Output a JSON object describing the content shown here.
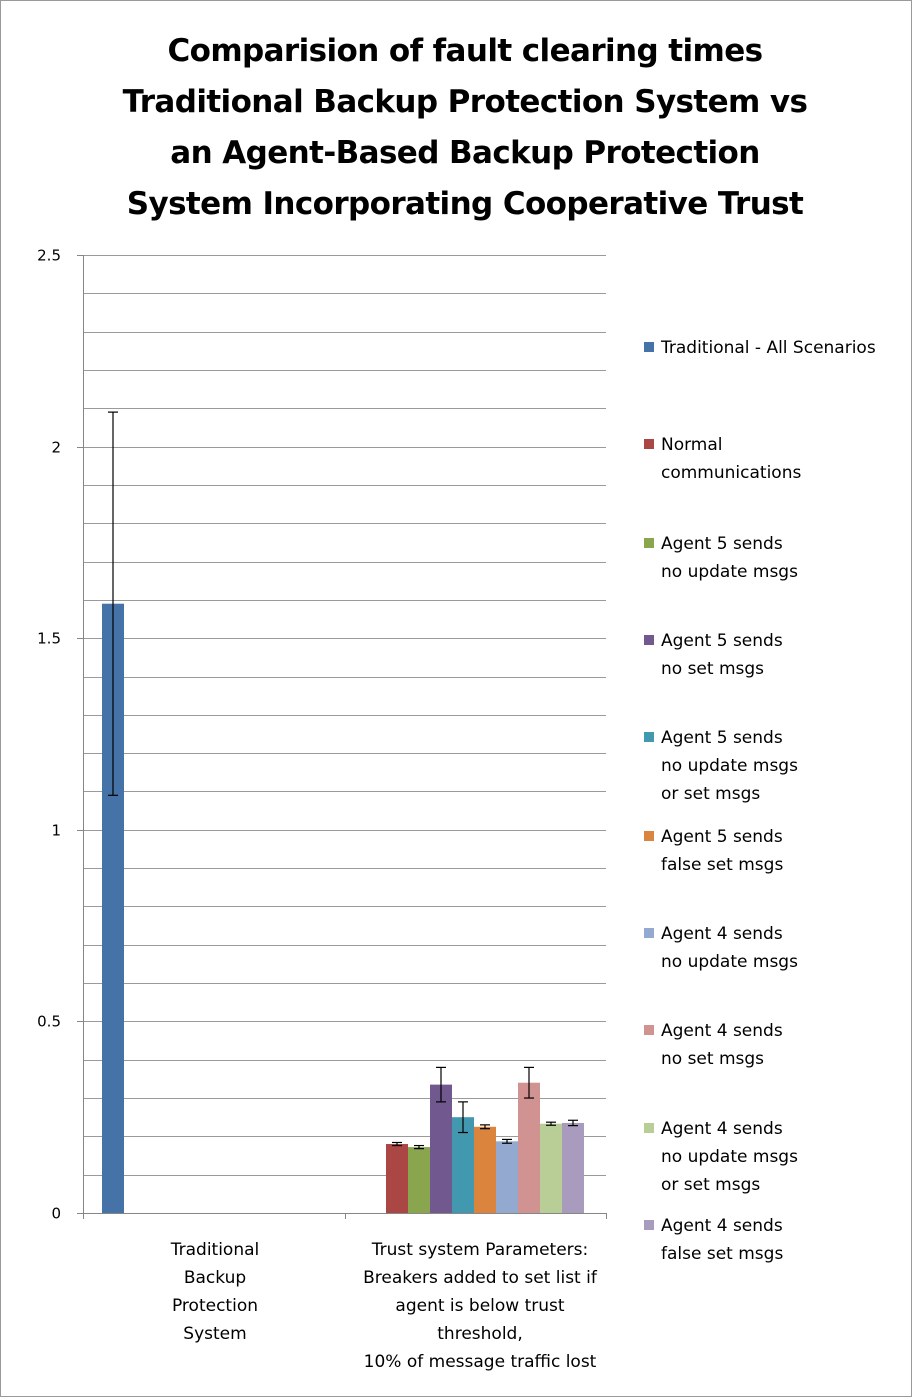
{
  "chart_data": {
    "type": "bar",
    "title_lines": [
      "Comparision of fault clearing times",
      "Traditional Backup Protection System vs",
      "an Agent-Based Backup Protection",
      "System Incorporating Cooperative Trust"
    ],
    "xlabel": "",
    "ylabel": "",
    "ylim": [
      0,
      2.5
    ],
    "y_ticks": [
      "0",
      "0.5",
      "1",
      "1.5",
      "2",
      "2.5"
    ],
    "y_tick_values": [
      0,
      0.5,
      1,
      1.5,
      2,
      2.5
    ],
    "minor_gridline_step": 0.1,
    "grid": true,
    "legend_position": "right",
    "categories": [
      {
        "lines": [
          "Traditional",
          "Backup",
          "Protection",
          "System"
        ]
      },
      {
        "lines": [
          "Trust system Parameters:",
          "Breakers added to set list if",
          "agent is below trust",
          "threshold,",
          "10% of message traffic lost"
        ]
      }
    ],
    "series": [
      {
        "name_lines": [
          "Traditional - All Scenarios"
        ],
        "color": "#4572a7",
        "category": 0,
        "value": 1.59,
        "err_low": 1.09,
        "err_high": 2.09
      },
      {
        "name_lines": [
          "Normal",
          "communications"
        ],
        "color": "#aa4643",
        "category": 1,
        "value": 0.18,
        "err_low": 0.176,
        "err_high": 0.184
      },
      {
        "name_lines": [
          "Agent 5 sends",
          "no update  msgs"
        ],
        "color": "#89a54e",
        "category": 1,
        "value": 0.172,
        "err_low": 0.168,
        "err_high": 0.176
      },
      {
        "name_lines": [
          "Agent 5 sends",
          "no set msgs"
        ],
        "color": "#71588f",
        "category": 1,
        "value": 0.335,
        "err_low": 0.29,
        "err_high": 0.38
      },
      {
        "name_lines": [
          "Agent 5 sends",
          "no update  msgs",
          "or set msgs"
        ],
        "color": "#4198af",
        "category": 1,
        "value": 0.25,
        "err_low": 0.21,
        "err_high": 0.29
      },
      {
        "name_lines": [
          "Agent 5 sends",
          "false set msgs"
        ],
        "color": "#db843d",
        "category": 1,
        "value": 0.225,
        "err_low": 0.22,
        "err_high": 0.23
      },
      {
        "name_lines": [
          "Agent 4 sends",
          "no update  msgs"
        ],
        "color": "#93a9cf",
        "category": 1,
        "value": 0.187,
        "err_low": 0.182,
        "err_high": 0.192
      },
      {
        "name_lines": [
          "Agent 4 sends",
          "no set msgs"
        ],
        "color": "#d19392",
        "category": 1,
        "value": 0.34,
        "err_low": 0.3,
        "err_high": 0.38
      },
      {
        "name_lines": [
          "Agent 4 sends",
          "no update  msgs",
          "or set msgs"
        ],
        "color": "#b9cd96",
        "category": 1,
        "value": 0.233,
        "err_low": 0.229,
        "err_high": 0.237
      },
      {
        "name_lines": [
          "Agent 4 sends",
          "false set msgs"
        ],
        "color": "#a99bbd",
        "category": 1,
        "value": 0.235,
        "err_low": 0.228,
        "err_high": 0.242
      }
    ]
  }
}
